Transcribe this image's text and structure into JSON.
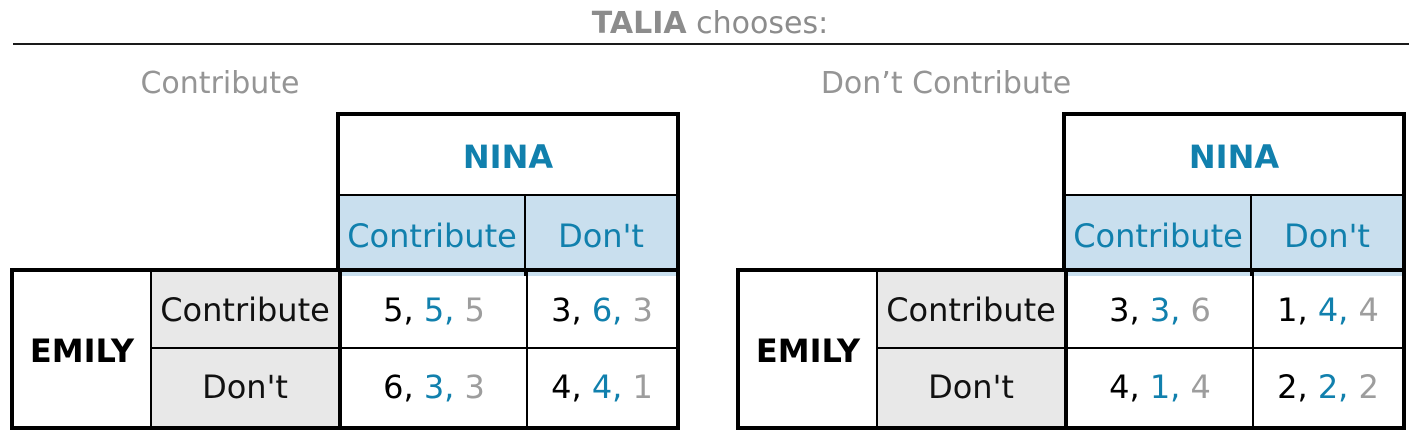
{
  "heading": {
    "player": "TALIA",
    "rest": "chooses:"
  },
  "colors": {
    "nina_blue": "#1180ad",
    "header_fill": "#c9dfee",
    "row_fill": "#e8e8e8",
    "talia_gray": "#9d9d9d"
  },
  "panels": [
    {
      "title": "Contribute",
      "column_player": "NINA",
      "columns": [
        "Contribute",
        "Don't"
      ],
      "row_player": "EMILY",
      "rows": [
        {
          "label": "Contribute",
          "cells": [
            {
              "emily": "5",
              "nina": "5",
              "talia": "5"
            },
            {
              "emily": "3",
              "nina": "6",
              "talia": "3"
            }
          ]
        },
        {
          "label": "Don't",
          "cells": [
            {
              "emily": "6",
              "nina": "3",
              "talia": "3"
            },
            {
              "emily": "4",
              "nina": "4",
              "talia": "1"
            }
          ]
        }
      ]
    },
    {
      "title": "Don’t Contribute",
      "column_player": "NINA",
      "columns": [
        "Contribute",
        "Don't"
      ],
      "row_player": "EMILY",
      "rows": [
        {
          "label": "Contribute",
          "cells": [
            {
              "emily": "3",
              "nina": "3",
              "talia": "6"
            },
            {
              "emily": "1",
              "nina": "4",
              "talia": "4"
            }
          ]
        },
        {
          "label": "Don't",
          "cells": [
            {
              "emily": "4",
              "nina": "1",
              "talia": "4"
            },
            {
              "emily": "2",
              "nina": "2",
              "talia": "2"
            }
          ]
        }
      ]
    }
  ]
}
